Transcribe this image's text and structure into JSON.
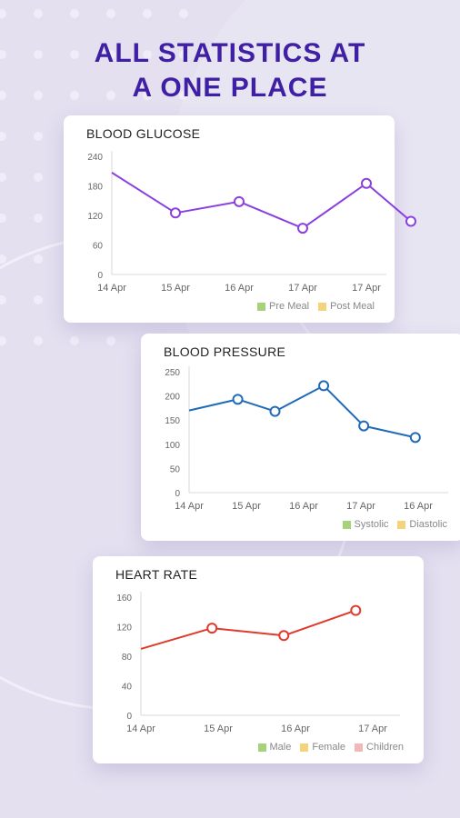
{
  "headline": {
    "line1": "ALL STATISTICS AT",
    "line2": "A ONE PLACE"
  },
  "colors": {
    "accent": "#3f1fa3",
    "background": "#e4e0f0"
  },
  "cards": [
    {
      "title": "BLOOD GLUCOSE",
      "legend": [
        {
          "label": "Pre Meal",
          "color": "#a5d27a"
        },
        {
          "label": "Post Meal",
          "color": "#f4d37a"
        }
      ]
    },
    {
      "title": "BLOOD PRESSURE",
      "legend": [
        {
          "label": "Systolic",
          "color": "#a5d27a"
        },
        {
          "label": "Diastolic",
          "color": "#f4d37a"
        }
      ]
    },
    {
      "title": "HEART RATE",
      "legend": [
        {
          "label": "Male",
          "color": "#a5d27a"
        },
        {
          "label": "Female",
          "color": "#f4d37a"
        },
        {
          "label": "Children",
          "color": "#f2b8b8"
        }
      ]
    }
  ],
  "chart_data": [
    {
      "type": "line",
      "title": "BLOOD GLUCOSE",
      "categories": [
        "14 Apr",
        "15 Apr",
        "16 Apr",
        "17 Apr",
        "17 Apr"
      ],
      "yticks": [
        0,
        60,
        120,
        180,
        240
      ],
      "ylim": [
        0,
        240
      ],
      "points": [
        {
          "x": 0.0,
          "y": 207
        },
        {
          "x": 1.0,
          "y": 125,
          "marker": true
        },
        {
          "x": 2.0,
          "y": 148,
          "marker": true
        },
        {
          "x": 3.0,
          "y": 94,
          "marker": true
        },
        {
          "x": 4.0,
          "y": 185,
          "marker": true
        },
        {
          "x": 4.7,
          "y": 108,
          "marker": true
        }
      ],
      "color": "#8a3fe0",
      "grid": false
    },
    {
      "type": "line",
      "title": "BLOOD PRESSURE",
      "categories": [
        "14 Apr",
        "15 Apr",
        "16 Apr",
        "17 Apr",
        "16 Apr"
      ],
      "yticks": [
        0,
        50,
        100,
        150,
        200,
        250
      ],
      "ylim": [
        0,
        250
      ],
      "points": [
        {
          "x": 0.0,
          "y": 170
        },
        {
          "x": 0.85,
          "y": 193,
          "marker": true
        },
        {
          "x": 1.5,
          "y": 168,
          "marker": true
        },
        {
          "x": 2.35,
          "y": 221,
          "marker": true
        },
        {
          "x": 3.05,
          "y": 138,
          "marker": true
        },
        {
          "x": 3.95,
          "y": 114,
          "marker": true
        }
      ],
      "color": "#1f6bb8",
      "grid": false
    },
    {
      "type": "line",
      "title": "HEART RATE",
      "categories": [
        "14 Apr",
        "15 Apr",
        "16 Apr",
        "17 Apr"
      ],
      "yticks": [
        0,
        40,
        80,
        120,
        160
      ],
      "ylim": [
        0,
        160
      ],
      "points": [
        {
          "x": 0.0,
          "y": 90
        },
        {
          "x": 0.92,
          "y": 118,
          "marker": true
        },
        {
          "x": 1.85,
          "y": 108,
          "marker": true
        },
        {
          "x": 2.78,
          "y": 142,
          "marker": true
        }
      ],
      "color": "#e03a2a",
      "grid": false
    }
  ]
}
